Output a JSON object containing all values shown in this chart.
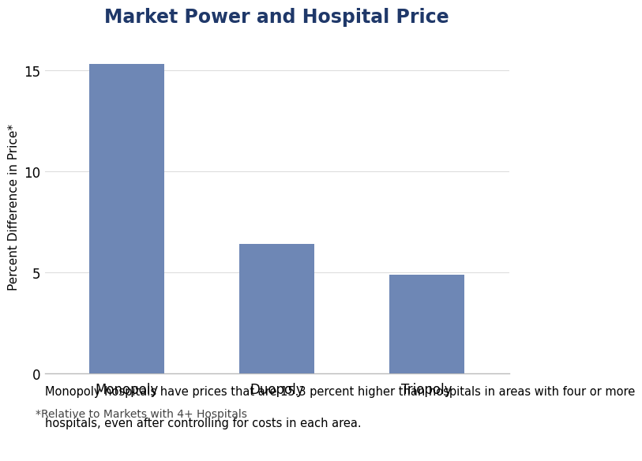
{
  "title": "Market Power and Hospital Price",
  "categories": [
    "Monopoly",
    "Duopoly",
    "Triopoly"
  ],
  "values": [
    15.3,
    6.4,
    4.9
  ],
  "bar_color": "#6e87b5",
  "ylabel": "Percent Difference in Price*",
  "xlabelnote": "*Relative to Markets with 4+ Hospitals",
  "ylim": [
    0,
    16.5
  ],
  "yticks": [
    0,
    5,
    10,
    15
  ],
  "footnote_line1": "Monopoly hospitals have prices that are 15.3 percent higher than hospitals in areas with four or more",
  "footnote_line2": "hospitals, even after controlling for costs in each area.",
  "title_fontsize": 17,
  "ylabel_fontsize": 11,
  "tick_fontsize": 12,
  "footnote_fontsize": 10.5,
  "xlabelnote_fontsize": 10,
  "background_color": "#ffffff",
  "title_color": "#1f3869",
  "bar_edge_color": "none",
  "spine_color": "#bbbbbb",
  "grid_color": "#dddddd"
}
